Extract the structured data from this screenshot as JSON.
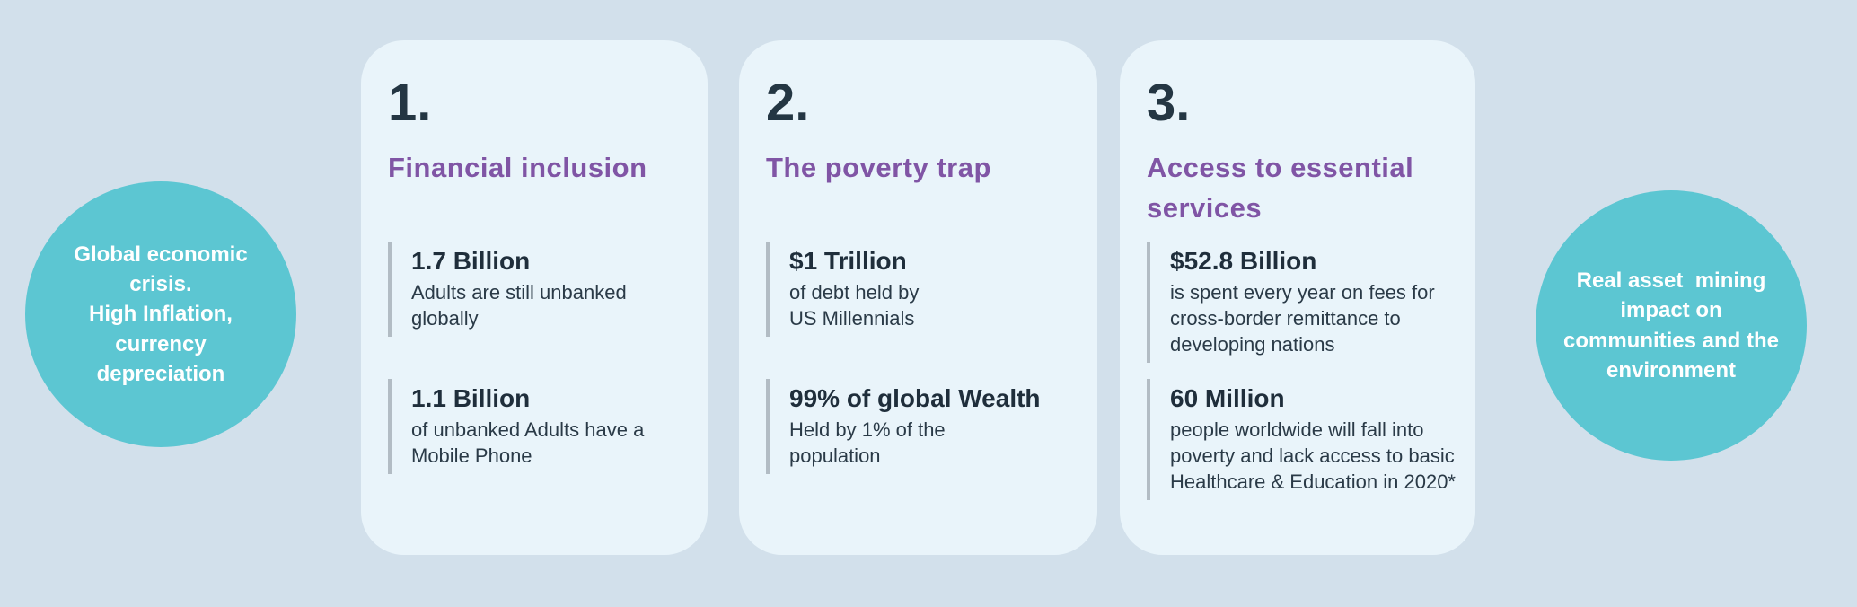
{
  "colors": {
    "bg": "#d2e0eb",
    "card_bg": "#e9f4fa",
    "teal": "#5cc6d2",
    "purple": "#8055a5",
    "dark": "#243643",
    "value": "#1f2e3b",
    "desc": "#2a3a47",
    "bar": "#b2bcc4",
    "white": "#ffffff"
  },
  "left_circle": {
    "text": "Global economic\ncrisis.\nHigh Inflation,\ncurrency\ndepreciation"
  },
  "right_circle": {
    "text": "Real asset  mining\nimpact on\ncommunities and the\nenvironment"
  },
  "cards": [
    {
      "number": "1.",
      "title": "Financial inclusion",
      "stats": [
        {
          "value": "1.7 Billion",
          "description": "Adults are still unbanked\nglobally"
        },
        {
          "value": "1.1 Billion",
          "description": "of unbanked Adults have a\nMobile Phone"
        }
      ]
    },
    {
      "number": "2.",
      "title": "The poverty trap",
      "stats": [
        {
          "value": "$1 Trillion",
          "description": "of debt held by\nUS Millennials"
        },
        {
          "value": "99% of global Wealth",
          "description": "Held by 1% of the\npopulation"
        }
      ]
    },
    {
      "number": "3.",
      "title": "Access to essential\nservices",
      "stats": [
        {
          "value": "$52.8 Billion",
          "description": "is spent every year on fees for\ncross-border remittance to\ndeveloping nations"
        },
        {
          "value": "60 Million",
          "description": "people worldwide will fall into\npoverty and lack access to basic\nHealthcare & Education in 2020*"
        }
      ]
    }
  ]
}
